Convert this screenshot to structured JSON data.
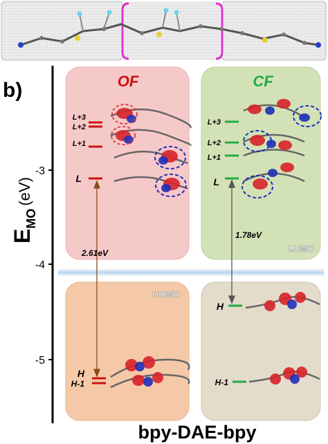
{
  "panel_label": "b)",
  "y_axis": {
    "symbol": "E",
    "subscript": "MO",
    "unit": "(eV)",
    "ticks": [
      "-3",
      "-4",
      "-5"
    ]
  },
  "x_label": "bpy-DAE-bpy",
  "of": {
    "title": "OF",
    "gap": "2.61eV",
    "homo_tag": "HOMO",
    "levels": [
      "L+3",
      "L+2",
      "L+1",
      "L",
      "H",
      "H-1"
    ]
  },
  "cf": {
    "title": "CF",
    "gap": "1.78eV",
    "lumo_tag": "LUMO",
    "levels": [
      "L+3",
      "L+2",
      "L+1",
      "L",
      "H",
      "H-1"
    ]
  },
  "colors": {
    "of_level": "#cc1111",
    "cf_level": "#22aa44",
    "of_top_box": "#f6c9c9",
    "cf_top_box": "#d3e2b6",
    "of_bottom_box": "#f5c9a8",
    "cf_bottom_box": "#e3dccb",
    "orbital_red": "#d8232a",
    "orbital_blue": "#1f2fb8",
    "highlight_magenta": "#e02fd0",
    "separator": "#b8d4ee"
  }
}
